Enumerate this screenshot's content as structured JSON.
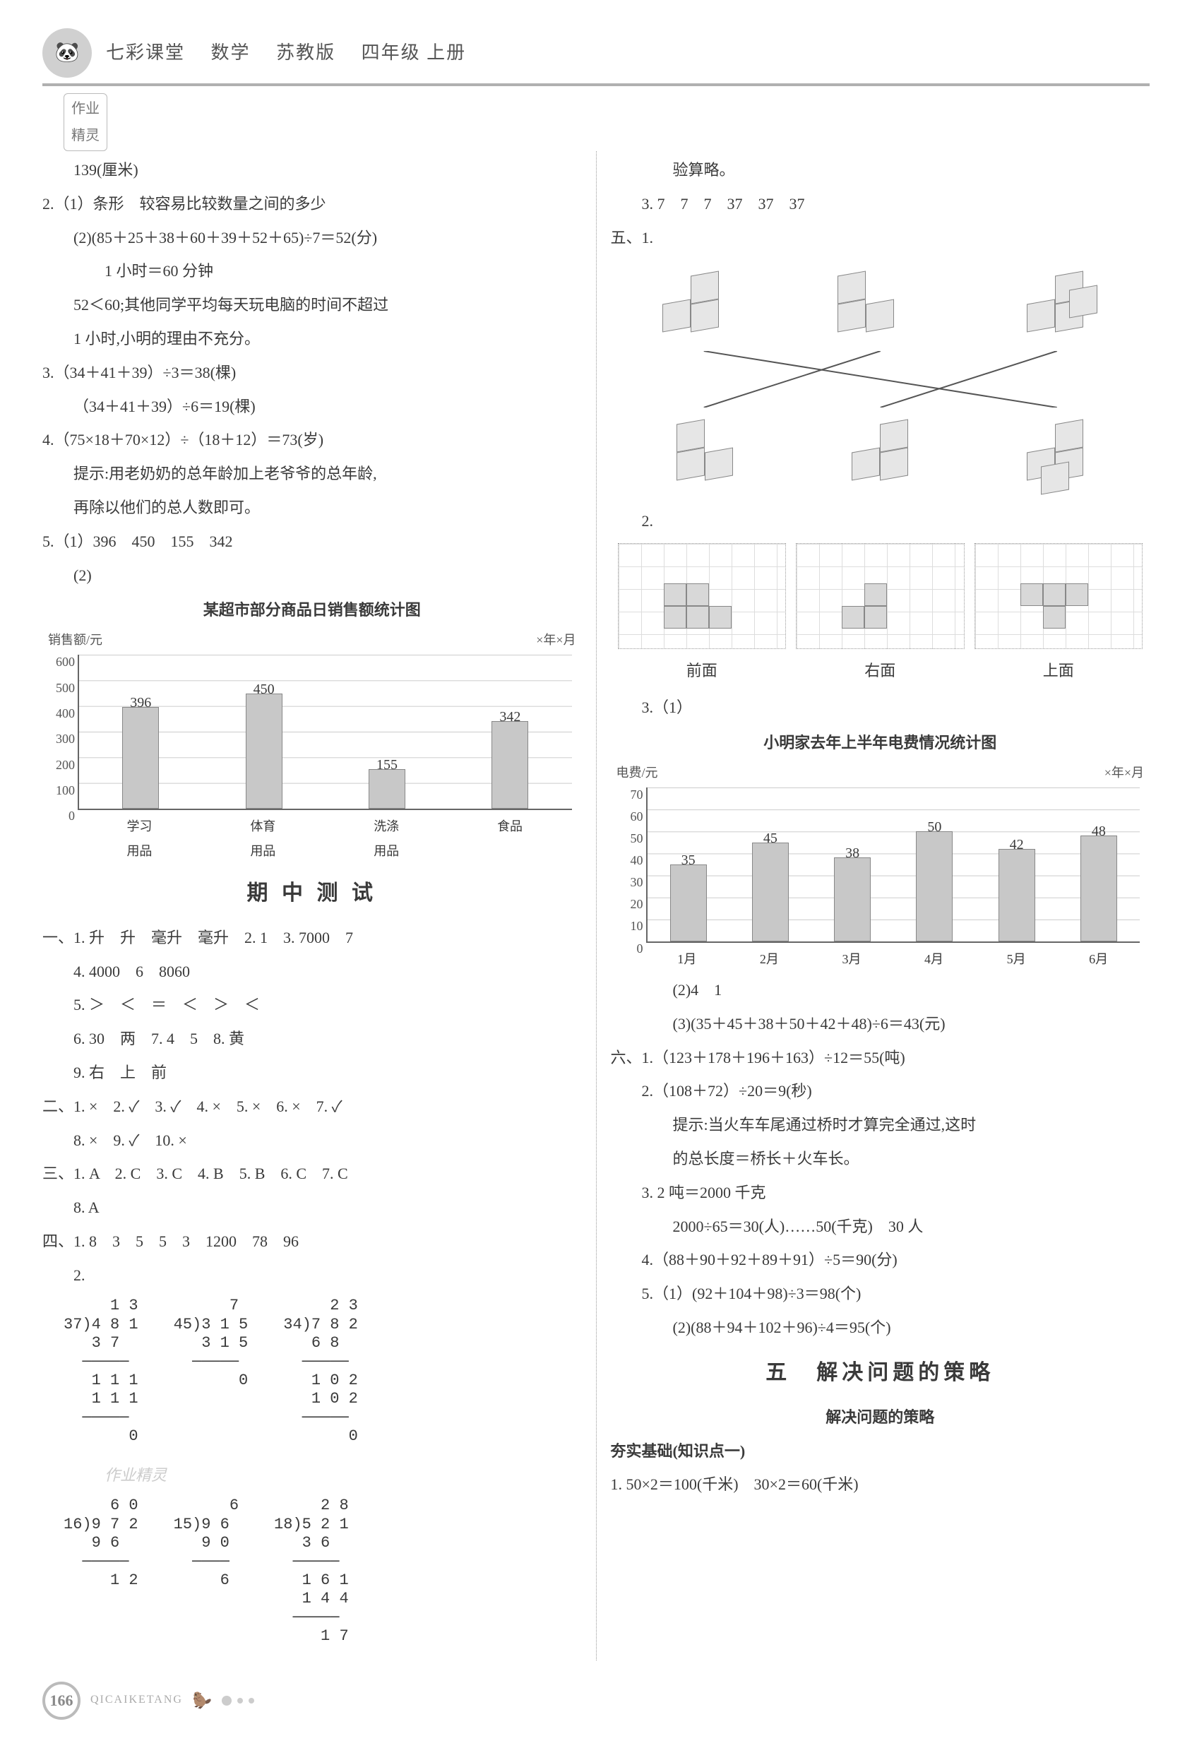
{
  "header": {
    "series": "七彩课堂",
    "subject": "数学",
    "edition": "苏教版",
    "grade": "四年级 上册"
  },
  "badge": "作业\n精灵",
  "left": {
    "l0": "139(厘米)",
    "q2a": "2.（1）条形　较容易比较数量之间的多少",
    "q2b": "(2)(85＋25＋38＋60＋39＋52＋65)÷7＝52(分)",
    "q2c": "1 小时＝60 分钟",
    "q2d": "52＜60;其他同学平均每天玩电脑的时间不超过",
    "q2e": "1 小时,小明的理由不充分。",
    "q3a": "3.（34＋41＋39）÷3＝38(棵)",
    "q3b": "（34＋41＋39）÷6＝19(棵)",
    "q4a": "4.（75×18＋70×12）÷（18＋12）＝73(岁)",
    "q4b": "提示:用老奶奶的总年龄加上老爷爷的总年龄,",
    "q4c": "再除以他们的总人数即可。",
    "q5a": "5.（1）396　450　155　342",
    "q5b": "(2)",
    "chart1": {
      "title": "某超市部分商品日销售额统计图",
      "ylabel": "销售额/元",
      "date": "×年×月",
      "ylim_max": 600,
      "ystep": 100,
      "yticks": [
        0,
        100,
        200,
        300,
        400,
        500,
        600
      ],
      "categories": [
        "学习\n用品",
        "体育\n用品",
        "洗涤\n用品",
        "食品"
      ],
      "values": [
        396,
        450,
        155,
        342
      ],
      "bar_color": "#c8c8c8",
      "border_color": "#888888"
    },
    "midterm_title": "期 中 测 试",
    "s1_1": "一、1. 升　升　毫升　毫升　2. 1　3. 7000　7",
    "s1_4": "4. 4000　6　8060",
    "s1_5": "5. ＞　＜　＝　＜　＞　＜",
    "s1_6": "6. 30　两　7. 4　5　8. 黄",
    "s1_9": "9. 右　上　前",
    "s2": "二、1. ×　2. ✓　3. ✓　4. ×　5. ×　6. ×　7. ✓",
    "s2b": "8. ×　9. ✓　10. ×",
    "s3": "三、1. A　2. C　3. C　4. B　5. B　6. C　7. C",
    "s3b": "8. A",
    "s4_1": "四、1. 8　3　5　5　3　1200　78　96",
    "s4_2": "2.",
    "ld1": "     1 3\n37)4 8 1\n   3 7\n  ─────\n   1 1 1\n   1 1 1\n  ─────\n       0",
    "ld2": "      7\n45)3 1 5\n   3 1 5\n  ─────\n       0",
    "ld3": "     2 3\n34)7 8 2\n   6 8\n  ─────\n   1 0 2\n   1 0 2\n  ─────\n       0",
    "ld4": "     6 0\n16)9 7 2\n   9 6\n  ─────\n     1 2",
    "ld5": "      6\n15)9 6\n   9 0\n  ────\n     6",
    "ld6": "     2 8\n18)5 2 1\n   3 6\n  ─────\n   1 6 1\n   1 4 4\n  ─────\n     1 7"
  },
  "right": {
    "r0": "验算略。",
    "r1": "3. 7　7　7　37　37　37",
    "s5": "五、1.",
    "s5_2": "2.",
    "views": {
      "front": "前面",
      "right": "右面",
      "top": "上面"
    },
    "s5_3": "3.（1）",
    "chart2": {
      "title": "小明家去年上半年电费情况统计图",
      "ylabel": "电费/元",
      "date": "×年×月",
      "ylim_max": 70,
      "ystep": 10,
      "yticks": [
        0,
        10,
        20,
        30,
        40,
        50,
        60,
        70
      ],
      "categories": [
        "1月",
        "2月",
        "3月",
        "4月",
        "5月",
        "6月"
      ],
      "values": [
        35,
        45,
        38,
        50,
        42,
        48
      ],
      "bar_color": "#c8c8c8",
      "border_color": "#888888"
    },
    "s5_3b": "(2)4　1",
    "s5_3c": "(3)(35＋45＋38＋50＋42＋48)÷6＝43(元)",
    "s6_1": "六、1.（123＋178＋196＋163）÷12＝55(吨)",
    "s6_2a": "2.（108＋72）÷20＝9(秒)",
    "s6_2b": "提示:当火车车尾通过桥时才算完全通过,这时",
    "s6_2c": "的总长度＝桥长＋火车长。",
    "s6_3a": "3. 2 吨＝2000 千克",
    "s6_3b": "2000÷65＝30(人)……50(千克)　30 人",
    "s6_4": "4.（88＋90＋92＋89＋91）÷5＝90(分)",
    "s6_5a": "5.（1）(92＋104＋98)÷3＝98(个)",
    "s6_5b": "(2)(88＋94＋102＋96)÷4＝95(个)",
    "unit5_title": "五　解决问题的策略",
    "unit5_sub": "解决问题的策略",
    "basis": "夯实基础(知识点一)",
    "b1": "1. 50×2＝100(千米)　30×2＝60(千米)"
  },
  "footer": {
    "page": "166",
    "brand": "QICAIKETANG"
  },
  "watermark": "作业精灵"
}
